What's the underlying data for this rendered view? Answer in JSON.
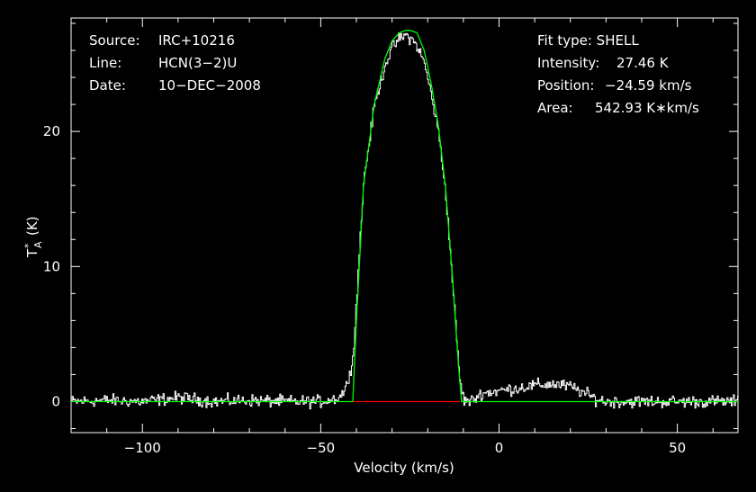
{
  "info": {
    "source_label": "Source:",
    "source_value": "IRC+10216",
    "line_label": "Line:",
    "line_value": "HCN(3−2)U",
    "date_label": "Date:",
    "date_value": "10−DEC−2008",
    "fit_type": "Fit type: SHELL",
    "intensity_label": "Intensity:",
    "intensity_value": "27.46 K",
    "position_label": "Position:",
    "position_value": "−24.59 km/s",
    "area_label": "Area:",
    "area_value": "542.93 K∗km/s"
  },
  "colors": {
    "background": "#000000",
    "axes": "#ffffff",
    "spectrum": "#ffffff",
    "fit": "#00ff00",
    "baseline": "#ff0000"
  },
  "chart_data": {
    "type": "line",
    "xlabel": "Velocity (km/s)",
    "ylabel_main": "T",
    "ylabel_sup": "*",
    "ylabel_sub": "A",
    "ylabel_unit": "(K)",
    "xlim": [
      -120,
      67
    ],
    "ylim": [
      -2.3,
      28.4
    ],
    "grid": false,
    "x_ticks": [
      -100,
      -50,
      0,
      50
    ],
    "x_tick_labels": [
      "−100",
      "−50",
      "0",
      "50"
    ],
    "y_ticks": [
      0,
      10,
      20
    ],
    "y_tick_labels": [
      "0",
      "10",
      "20"
    ],
    "series": [
      {
        "kind": "spectrum",
        "x": [
          -120,
          -110,
          -100,
          -90,
          -80,
          -70,
          -60,
          -50,
          -45,
          -43,
          -42,
          -41,
          -40,
          -38,
          -35,
          -32,
          -30,
          -28,
          -26,
          -24.6,
          -23,
          -21,
          -19,
          -17,
          -15,
          -13,
          -12,
          -11,
          -10,
          -8,
          -5,
          0,
          5,
          10,
          15,
          20,
          24,
          27,
          30,
          40,
          50,
          60,
          67
        ],
        "y": [
          0,
          0.1,
          0,
          0.3,
          0,
          0.1,
          0,
          0,
          0.3,
          1.0,
          2.3,
          3.2,
          8.0,
          16.5,
          22.0,
          25.0,
          26.2,
          26.9,
          27.1,
          26.8,
          26.3,
          25.0,
          22.6,
          19.8,
          15.3,
          8.4,
          4.5,
          1.4,
          0.1,
          0,
          0.6,
          0.8,
          1.0,
          1.2,
          1.3,
          1.1,
          0.6,
          0.2,
          0,
          0,
          0,
          0,
          0
        ]
      },
      {
        "kind": "fit",
        "x": [
          -120,
          -41,
          -40,
          -38,
          -35,
          -32,
          -30,
          -28,
          -26,
          -24.6,
          -23,
          -21,
          -19,
          -17,
          -15,
          -13,
          -12,
          -11,
          -10.5,
          67
        ],
        "y": [
          0,
          0,
          6.0,
          16.0,
          22.0,
          25.4,
          26.7,
          27.3,
          27.5,
          27.46,
          27.3,
          26.0,
          23.5,
          20.4,
          15.8,
          9.0,
          5.0,
          1.5,
          0,
          0
        ]
      },
      {
        "kind": "baseline",
        "x": [
          -41,
          -11
        ],
        "y": [
          0,
          0
        ]
      }
    ]
  }
}
